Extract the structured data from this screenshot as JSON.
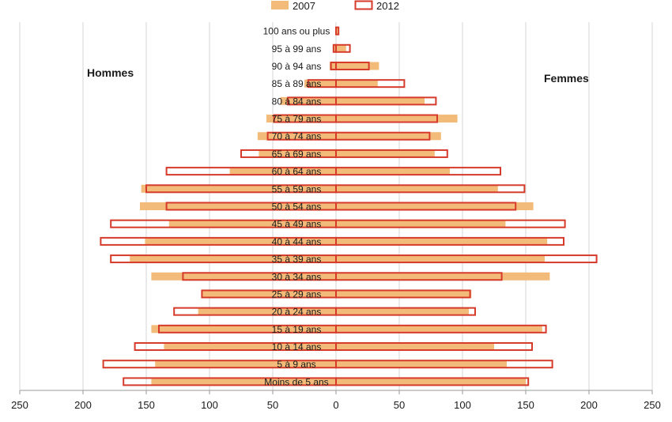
{
  "chart_data": {
    "type": "bar",
    "orientation": "horizontal-pyramid",
    "categories": [
      "Moins de 5 ans",
      "5 à 9 ans",
      "10 à 14 ans",
      "15 à 19 ans",
      "20 à 24 ans",
      "25 à 29 ans",
      "30 à 34 ans",
      "35 à 39 ans",
      "40 à 44 ans",
      "45 à 49 ans",
      "50 à 54 ans",
      "55 à 59 ans",
      "60 à 64 ans",
      "65 à 69 ans",
      "70 à 74 ans",
      "75 à 79 ans",
      "80 à 84 ans",
      "85 à 89 ans",
      "90 à 94 ans",
      "95 à 99 ans",
      "100 ans ou plus"
    ],
    "series": [
      {
        "name": "2007",
        "color": "#f3bb7a",
        "style": "filled",
        "hommes": [
          146,
          143,
          136,
          146,
          109,
          106,
          146,
          163,
          151,
          132,
          155,
          154,
          84,
          61,
          62,
          55,
          44,
          25,
          5,
          2,
          0
        ],
        "femmes": [
          150,
          135,
          125,
          163,
          105,
          107,
          169,
          165,
          167,
          134,
          156,
          128,
          90,
          78,
          83,
          96,
          70,
          33,
          34,
          8,
          2
        ]
      },
      {
        "name": "2012",
        "color": "#d63a2a",
        "style": "outline",
        "hommes": [
          168,
          184,
          159,
          140,
          128,
          106,
          121,
          178,
          186,
          178,
          134,
          150,
          134,
          75,
          54,
          49,
          38,
          22,
          4,
          2,
          0
        ],
        "femmes": [
          152,
          171,
          155,
          166,
          110,
          106,
          131,
          206,
          180,
          181,
          142,
          149,
          130,
          88,
          74,
          80,
          79,
          54,
          26,
          11,
          2
        ]
      }
    ],
    "group_labels": {
      "left": "Hommes",
      "right": "Femmes"
    },
    "x_ticks": [
      "250",
      "200",
      "150",
      "100",
      "50",
      "0",
      "50",
      "100",
      "150",
      "200",
      "250"
    ],
    "xlim": [
      -250,
      250
    ],
    "grid": "vertical",
    "legend": "top-center"
  }
}
